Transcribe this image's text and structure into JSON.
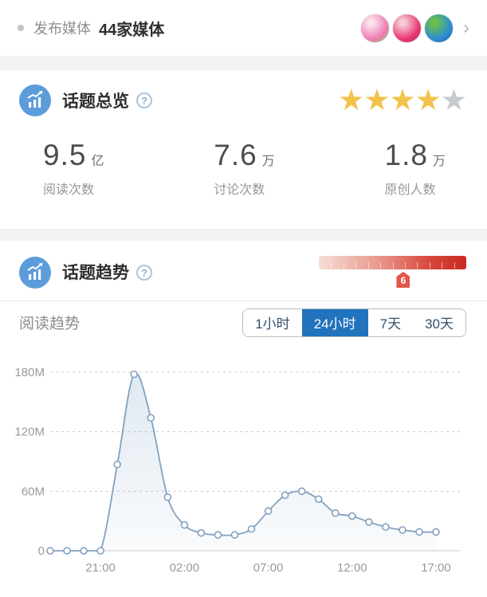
{
  "publisher_bar": {
    "label": "发布媒体",
    "value": "44家媒体",
    "chevron": "›",
    "avatars": [
      {
        "name": "media-avatar-1",
        "gradient": [
          "#fbe3ee",
          "#ef7fb4",
          "#8fba5a"
        ]
      },
      {
        "name": "media-avatar-2",
        "gradient": [
          "#f9c9d6",
          "#e93d76",
          "#b41f4e"
        ]
      },
      {
        "name": "media-avatar-3",
        "gradient": [
          "#6abf4b",
          "#2e8fd0",
          "#1b5fa8"
        ]
      }
    ]
  },
  "overview": {
    "title": "话题总览",
    "help": "?",
    "rating": {
      "filled": 4,
      "total": 5
    },
    "stats": [
      {
        "value": "9.5",
        "unit": "亿",
        "label": "阅读次数"
      },
      {
        "value": "7.6",
        "unit": "万",
        "label": "讨论次数"
      },
      {
        "value": "1.8",
        "unit": "万",
        "label": "原创人数"
      }
    ]
  },
  "trend": {
    "title": "话题趋势",
    "help": "?",
    "heat_gauge": {
      "value": "6",
      "position_pct": 57,
      "ticks": 12
    },
    "subtitle": "阅读趋势",
    "tabs": [
      {
        "label": "1小时",
        "active": false
      },
      {
        "label": "24小时",
        "active": true
      },
      {
        "label": "7天",
        "active": false
      },
      {
        "label": "30天",
        "active": false
      }
    ]
  },
  "chart_data": {
    "type": "area",
    "title": "阅读趋势 24小时",
    "x": [
      "18:00",
      "19:00",
      "20:00",
      "21:00",
      "22:00",
      "23:00",
      "00:00",
      "01:00",
      "02:00",
      "03:00",
      "04:00",
      "05:00",
      "06:00",
      "07:00",
      "08:00",
      "09:00",
      "10:00",
      "11:00",
      "12:00",
      "13:00",
      "14:00",
      "15:00",
      "16:00",
      "17:00"
    ],
    "values_millions": [
      0,
      0,
      0,
      0,
      87,
      178,
      134,
      54,
      26,
      18,
      16,
      16,
      22,
      40,
      56,
      60,
      52,
      38,
      35,
      29,
      24,
      21,
      19,
      19
    ],
    "y_ticks": [
      {
        "value": 0,
        "label": "0"
      },
      {
        "value": 60,
        "label": "60M"
      },
      {
        "value": 120,
        "label": "120M"
      },
      {
        "value": 180,
        "label": "180M"
      }
    ],
    "x_tick_indices": [
      3,
      8,
      13,
      18,
      23
    ],
    "ylim": [
      0,
      180
    ],
    "grid": "dashed-horizontal",
    "legend": "none",
    "line_color": "#84a1bf",
    "marker_fill": "#ffffff",
    "area_top_color": "rgba(150,178,208,0.30)",
    "area_bottom_color": "rgba(150,178,208,0.05)",
    "axis_label_color": "#9a9a9a",
    "grid_color": "#cccccc",
    "baseline_color": "#c9ccd0"
  },
  "colors": {
    "accent_blue": "#2173bd",
    "section_icon_blue": "#5d9cdb",
    "star_gold": "#f3c24a",
    "star_gray": "#c6c9ce",
    "heat_gradient_start": "#f7ddd7",
    "heat_gradient_end": "#ca2922",
    "tag_red": "#e2554b",
    "separator_gray": "#f2f2f3"
  }
}
